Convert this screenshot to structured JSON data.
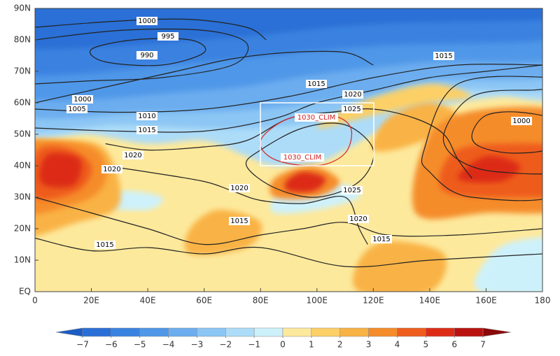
{
  "map": {
    "lat_ticks": [
      {
        "value": 90,
        "label": "90N"
      },
      {
        "value": 80,
        "label": "80N"
      },
      {
        "value": 70,
        "label": "70N"
      },
      {
        "value": 60,
        "label": "60N"
      },
      {
        "value": 50,
        "label": "50N"
      },
      {
        "value": 40,
        "label": "40N"
      },
      {
        "value": 30,
        "label": "30N"
      },
      {
        "value": 20,
        "label": "20N"
      },
      {
        "value": 10,
        "label": "10N"
      },
      {
        "value": 0,
        "label": "EQ"
      }
    ],
    "lon_ticks": [
      0,
      {
        "value": 20,
        "label": "20E"
      },
      {
        "value": 40,
        "label": "40E"
      },
      {
        "value": 60,
        "label": "60E"
      },
      {
        "value": 80,
        "label": "80E"
      },
      {
        "value": 100,
        "label": "100E"
      },
      {
        "value": 120,
        "label": "120E"
      },
      {
        "value": 140,
        "label": "140E"
      },
      {
        "value": 160,
        "label": "160E"
      },
      180
    ],
    "contour_labels": [
      1000,
      995,
      990,
      1015,
      1015,
      1020,
      1025,
      1000,
      1005,
      1010,
      1015,
      1000,
      1020,
      1020,
      1020,
      1025,
      1015,
      1020,
      1015,
      1015
    ],
    "clim_labels": [
      "1030_CLIM",
      "1030_CLIM"
    ]
  },
  "colorbar": {
    "levels": [
      {
        "value": -7,
        "label": "−7"
      },
      {
        "value": -6,
        "label": "−6"
      },
      {
        "value": -5,
        "label": "−5"
      },
      {
        "value": -4,
        "label": "−4"
      },
      {
        "value": -3,
        "label": "−3"
      },
      {
        "value": -2,
        "label": "−2"
      },
      {
        "value": -1,
        "label": "−1"
      },
      0,
      1,
      2,
      3,
      4,
      5,
      6,
      7
    ],
    "colors": [
      "#1c5cc4",
      "#2a6fd6",
      "#3a82e0",
      "#5097e8",
      "#6cadef",
      "#8cc6f4",
      "#addcf8",
      "#cdf1fb",
      "#fde99c",
      "#fcd066",
      "#f9b244",
      "#f58c2a",
      "#ee5c1e",
      "#dc2c16",
      "#b91210",
      "#8a0808"
    ]
  }
}
